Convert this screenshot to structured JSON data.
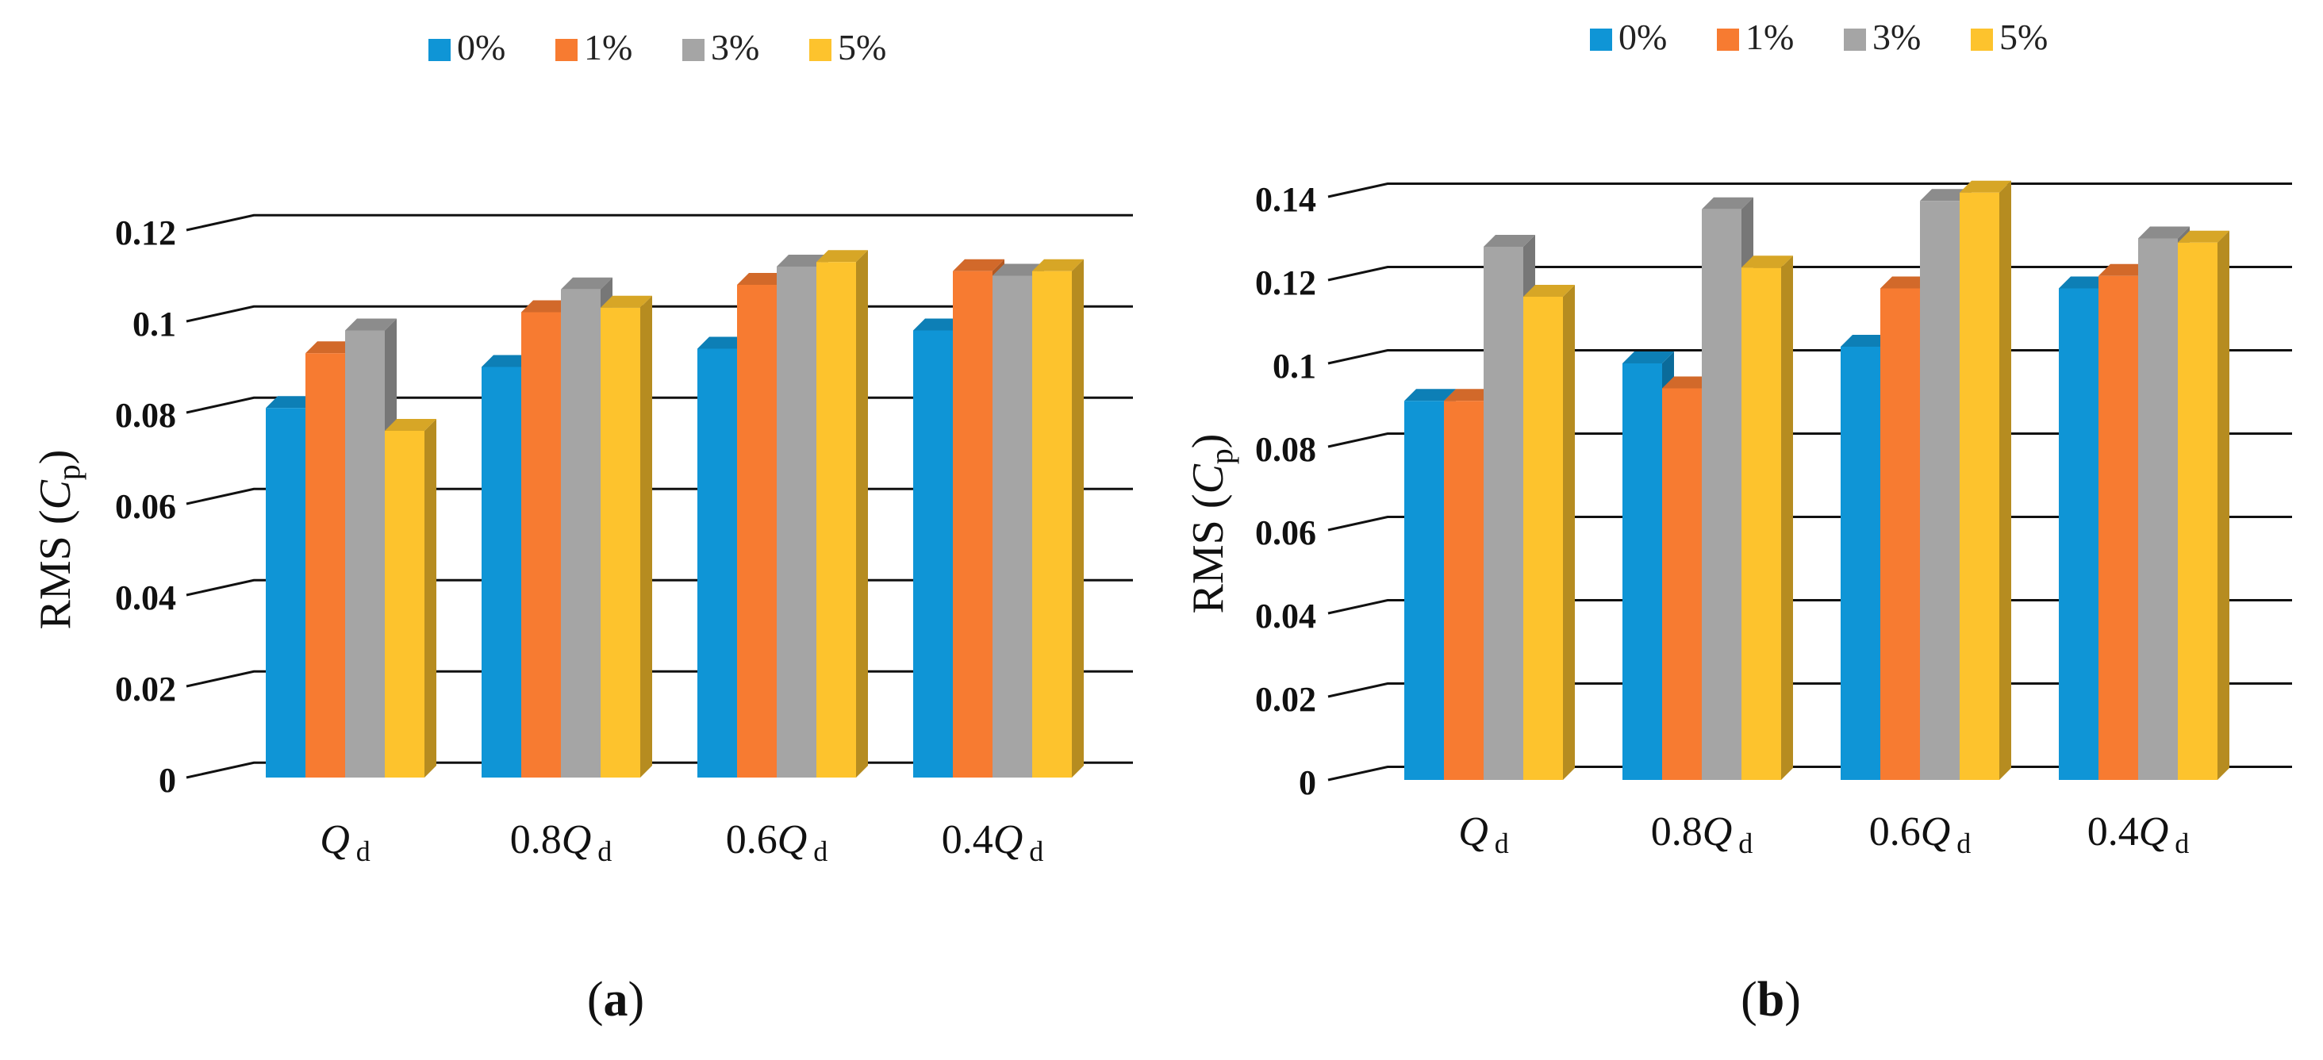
{
  "colors": {
    "series": [
      "#0f95d6",
      "#f77b31",
      "#a5a5a5",
      "#fdc32d"
    ],
    "grid": "#111111",
    "text": "#111111"
  },
  "chart_data": [
    {
      "type": "bar",
      "panel_label": "a",
      "legend_position": "top",
      "grid": true,
      "ylabel": "RMS (Cp)",
      "ylabel_parts": {
        "prefix": "RMS (",
        "symbol": "C",
        "sub": "p",
        "suffix": ")"
      },
      "ylim": [
        0,
        0.12
      ],
      "yticks": [
        "0",
        "0.02",
        "0.04",
        "0.06",
        "0.08",
        "0.1",
        "0.12"
      ],
      "categories": [
        "Qd",
        "0.8Qd",
        "0.6Qd",
        "0.4Qd"
      ],
      "category_parts": [
        {
          "coef": "",
          "sym": "Q",
          "sub": "d"
        },
        {
          "coef": "0.8",
          "sym": "Q",
          "sub": "d"
        },
        {
          "coef": "0.6",
          "sym": "Q",
          "sub": "d"
        },
        {
          "coef": "0.4",
          "sym": "Q",
          "sub": "d"
        }
      ],
      "series": [
        {
          "name": "0%",
          "values": [
            0.081,
            0.09,
            0.094,
            0.098
          ]
        },
        {
          "name": "1%",
          "values": [
            0.093,
            0.102,
            0.108,
            0.111
          ]
        },
        {
          "name": "3%",
          "values": [
            0.098,
            0.107,
            0.112,
            0.11
          ]
        },
        {
          "name": "5%",
          "values": [
            0.076,
            0.103,
            0.113,
            0.111
          ]
        }
      ]
    },
    {
      "type": "bar",
      "panel_label": "b",
      "legend_position": "top",
      "grid": true,
      "ylabel": "RMS (Cp)",
      "ylabel_parts": {
        "prefix": "RMS (",
        "symbol": "C",
        "sub": "p",
        "suffix": ")"
      },
      "ylim": [
        0,
        0.14
      ],
      "yticks": [
        "0",
        "0.02",
        "0.04",
        "0.06",
        "0.08",
        "0.1",
        "0.12",
        "0.14"
      ],
      "categories": [
        "Qd",
        "0.8Qd",
        "0.6Qd",
        "0.4Qd"
      ],
      "category_parts": [
        {
          "coef": "",
          "sym": "Q",
          "sub": "d"
        },
        {
          "coef": "0.8",
          "sym": "Q",
          "sub": "d"
        },
        {
          "coef": "0.6",
          "sym": "Q",
          "sub": "d"
        },
        {
          "coef": "0.4",
          "sym": "Q",
          "sub": "d"
        }
      ],
      "series": [
        {
          "name": "0%",
          "values": [
            0.091,
            0.1,
            0.104,
            0.118
          ]
        },
        {
          "name": "1%",
          "values": [
            0.091,
            0.094,
            0.118,
            0.121
          ]
        },
        {
          "name": "3%",
          "values": [
            0.128,
            0.137,
            0.139,
            0.13
          ]
        },
        {
          "name": "5%",
          "values": [
            0.116,
            0.123,
            0.141,
            0.129
          ]
        }
      ]
    }
  ]
}
